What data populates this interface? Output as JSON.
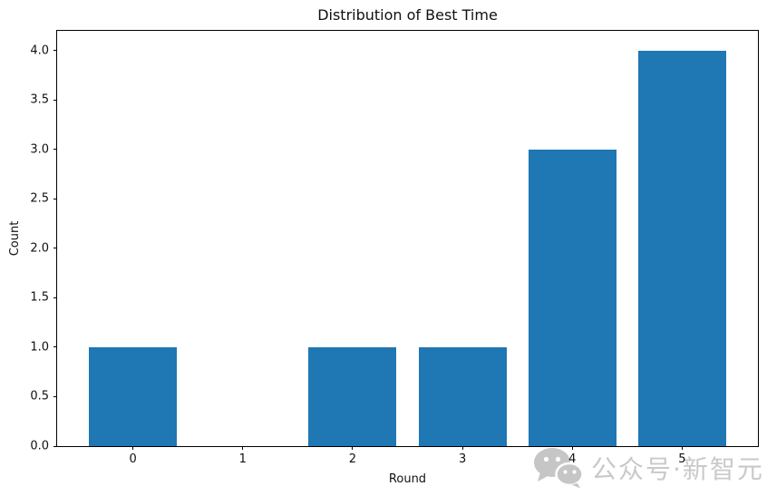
{
  "chart_data": {
    "type": "bar",
    "title": "Distribution of Best Time",
    "xlabel": "Round",
    "ylabel": "Count",
    "categories": [
      "0",
      "1",
      "2",
      "3",
      "4",
      "5"
    ],
    "values": [
      1,
      0,
      1,
      1,
      3,
      4
    ],
    "yticks": [
      {
        "label": "0.0",
        "value": 0
      },
      {
        "label": "0.5",
        "value": 0.5
      },
      {
        "label": "1.0",
        "value": 1
      },
      {
        "label": "1.5",
        "value": 1.5
      },
      {
        "label": "2.0",
        "value": 2
      },
      {
        "label": "2.5",
        "value": 2.5
      },
      {
        "label": "3.0",
        "value": 3
      },
      {
        "label": "3.5",
        "value": 3.5
      },
      {
        "label": "4.0",
        "value": 4
      }
    ],
    "xlim": [
      -0.69,
      5.69
    ],
    "ylim": [
      0,
      4.2
    ],
    "bar_width": 0.8,
    "bar_color": "#1f77b4",
    "grid": false,
    "legend": null
  },
  "watermark": {
    "text": "公众号·新智元",
    "icon": "wechat-icon",
    "color": "#c9c9c9"
  }
}
